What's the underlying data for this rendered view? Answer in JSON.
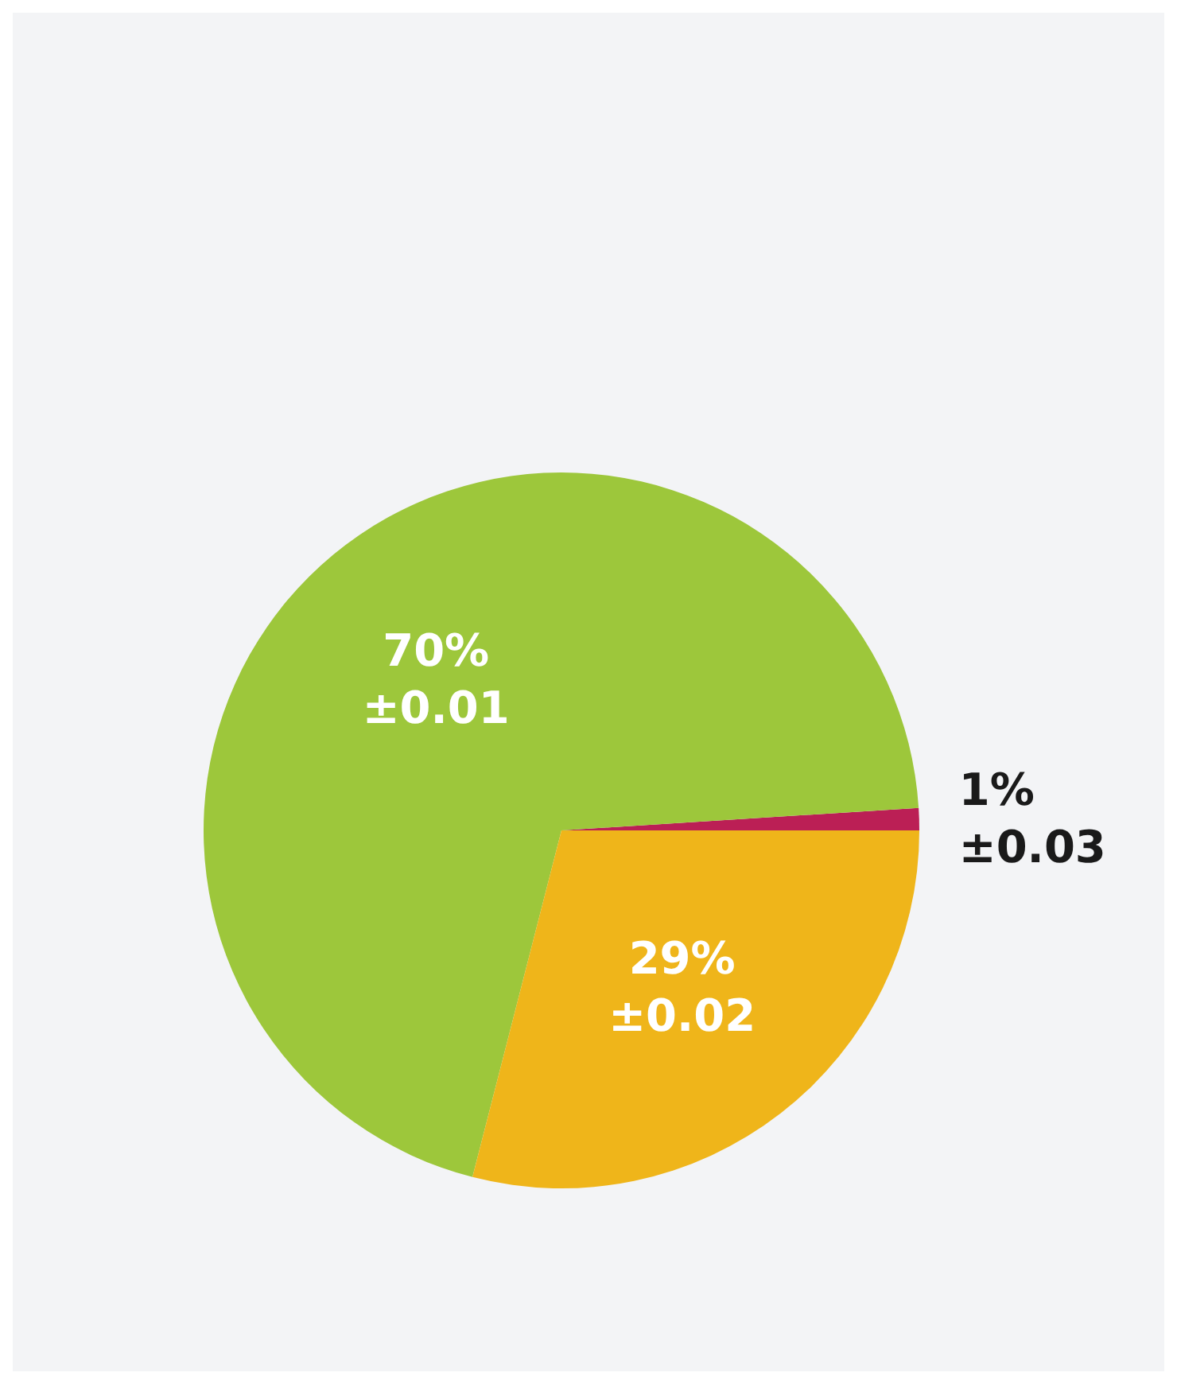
{
  "chart_data": {
    "type": "pie",
    "categories": [
      null,
      null,
      null
    ],
    "values": [
      1,
      70,
      29
    ],
    "colors": [
      "#bb1f55",
      "#9dc73b",
      "#efb51a"
    ],
    "value_labels": [
      "1%\n±0.03",
      "70%\n±0.01",
      "29%\n±0.02"
    ]
  }
}
